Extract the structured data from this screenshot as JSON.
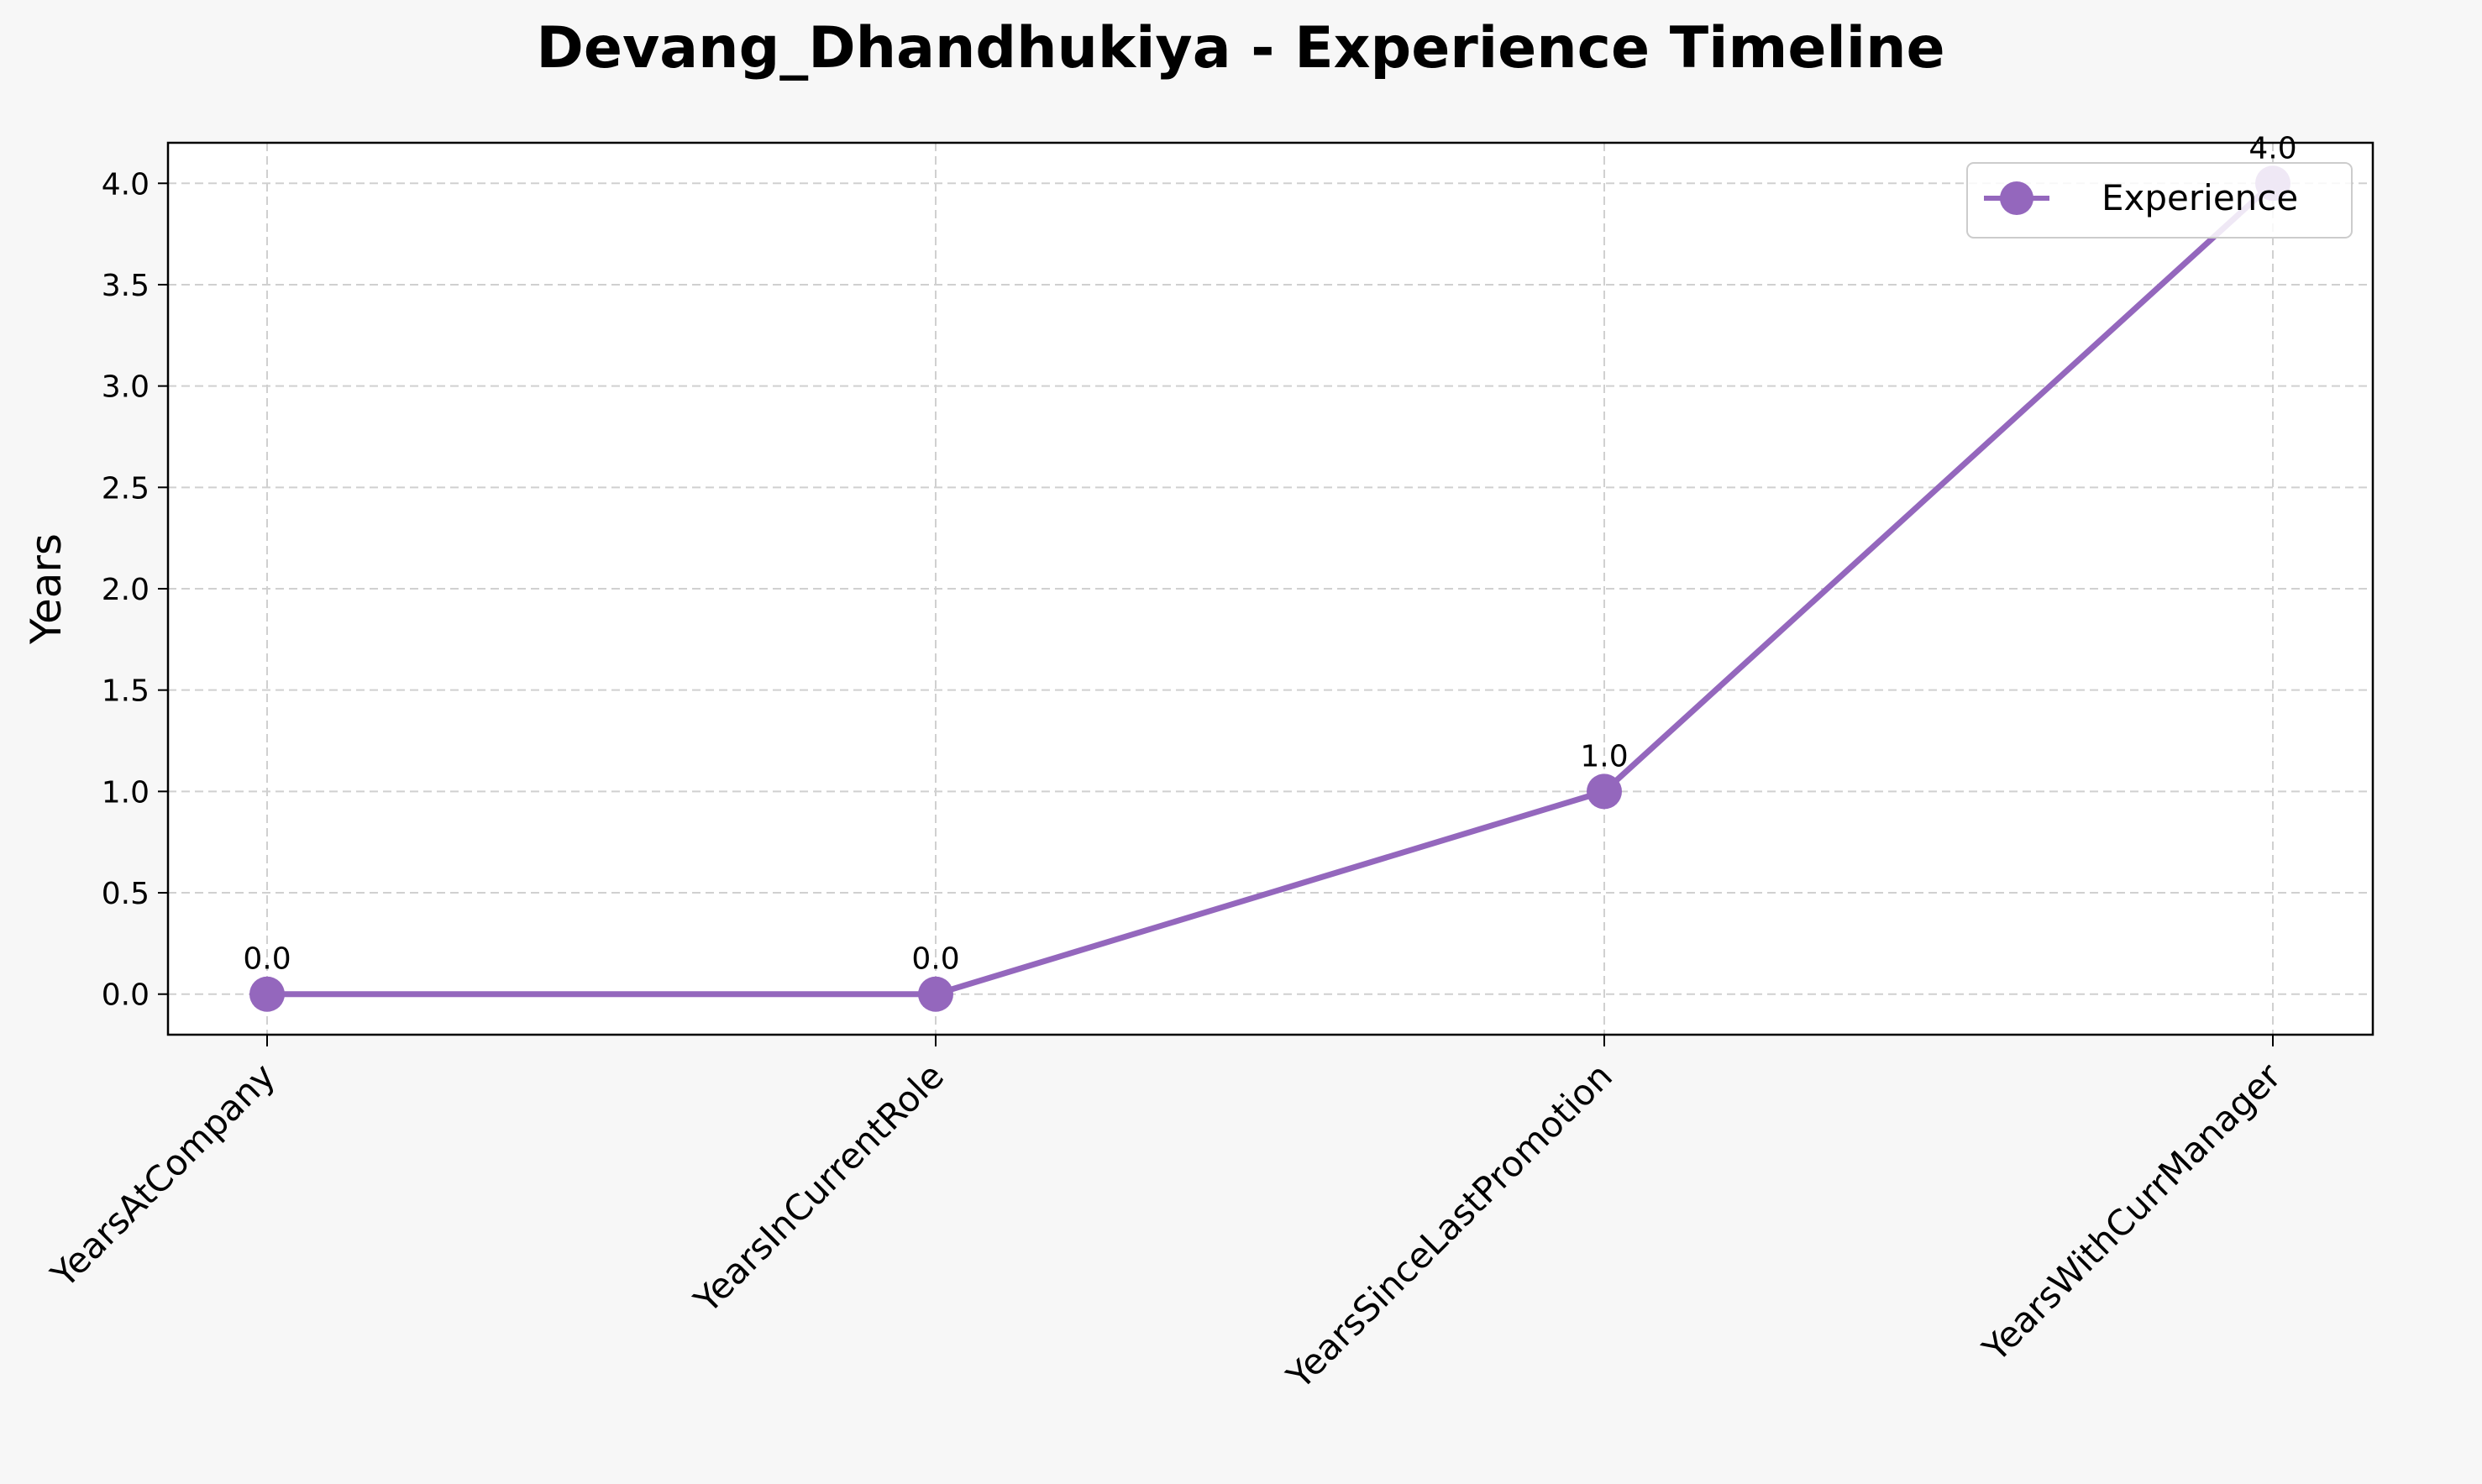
{
  "chart_data": {
    "type": "line",
    "title": "Devang_Dhandhukiya - Experience Timeline",
    "xlabel": "",
    "ylabel": "Years",
    "categories": [
      "YearsAtCompany",
      "YearsInCurrentRole",
      "YearsSinceLastPromotion",
      "YearsWithCurrManager"
    ],
    "series": [
      {
        "name": "Experience",
        "values": [
          0.0,
          0.0,
          1.0,
          4.0
        ],
        "color": "#9467bd"
      }
    ],
    "data_labels": [
      "0.0",
      "0.0",
      "1.0",
      "4.0"
    ],
    "yticks": [
      0.0,
      0.5,
      1.0,
      1.5,
      2.0,
      2.5,
      3.0,
      3.5,
      4.0
    ],
    "ytick_labels": [
      "0.0",
      "0.5",
      "1.0",
      "1.5",
      "2.0",
      "2.5",
      "3.0",
      "3.5",
      "4.0"
    ],
    "ylim": [
      -0.2,
      4.2
    ],
    "grid": true,
    "legend_position": "upper right",
    "background": "#f7f7f7",
    "plot_background": "#ffffff"
  }
}
